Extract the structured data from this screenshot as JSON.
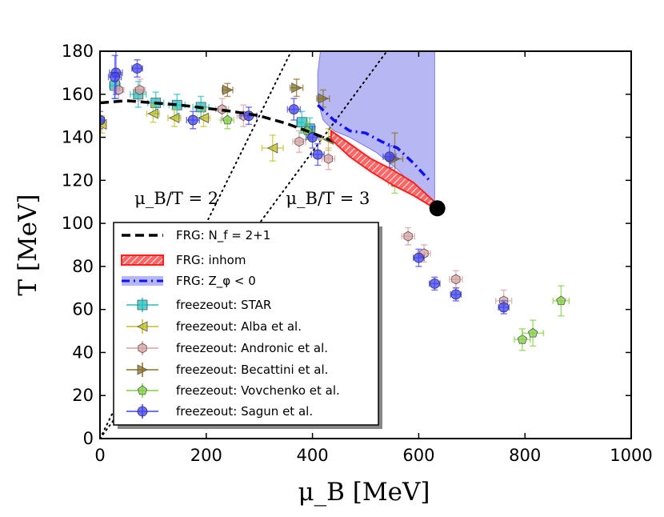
{
  "chart_data": {
    "type": "scatter",
    "xlabel": "μ_B [MeV]",
    "ylabel": "T [MeV]",
    "xlim": [
      0,
      1000
    ],
    "ylim": [
      0,
      180
    ],
    "xticks": [
      0,
      200,
      400,
      600,
      800,
      1000
    ],
    "yticks": [
      0,
      20,
      40,
      60,
      80,
      100,
      120,
      140,
      160,
      180
    ],
    "grid": false,
    "legend_position": "lower-left",
    "annotations": [
      {
        "text": "μ_B/T = 2",
        "x": 65,
        "y": 109
      },
      {
        "text": "μ_B/T = 3",
        "x": 350,
        "y": 109
      }
    ],
    "reference_lines": [
      {
        "name": "μ_B/T = 2",
        "slope": 0.5
      },
      {
        "name": "μ_B/T = 3",
        "slope": 0.3333
      }
    ],
    "critical_point": {
      "x": 635,
      "y": 107
    },
    "region": {
      "name": "FRG: Z_φ < 0",
      "color": "#7b7bea",
      "boundary": [
        [
          420,
          180
        ],
        [
          630,
          180
        ],
        [
          630,
          110
        ],
        [
          600,
          115
        ],
        [
          560,
          125
        ],
        [
          520,
          133
        ],
        [
          470,
          140
        ],
        [
          440,
          143
        ],
        [
          420,
          148
        ],
        [
          410,
          157
        ],
        [
          410,
          170
        ],
        [
          415,
          180
        ]
      ]
    },
    "series": [
      {
        "name": "FRG: N_f = 2+1",
        "style": "dashed",
        "color": "#000000",
        "x": [
          0,
          50,
          100,
          150,
          200,
          250,
          300,
          350,
          400,
          450,
          500,
          550,
          600,
          630
        ],
        "y": [
          156,
          157,
          156,
          155,
          153.5,
          152,
          150,
          146.5,
          142,
          137,
          130,
          124,
          113,
          107
        ]
      },
      {
        "name": "FRG: inhom",
        "style": "band",
        "color": "#ff2020",
        "x": [
          435,
          470,
          510,
          550,
          590,
          630
        ],
        "y_low": [
          139,
          131,
          124,
          118,
          113,
          107
        ],
        "y_high": [
          143,
          137,
          130,
          125,
          119,
          110
        ]
      },
      {
        "name": "FRG: Z_φ < 0",
        "style": "dashdot",
        "color": "#1010ff",
        "x": [
          410,
          440,
          470,
          500,
          530,
          560,
          590,
          620
        ],
        "y": [
          155,
          148,
          143,
          142,
          138,
          135,
          128,
          120
        ]
      },
      {
        "name": "freezeout: STAR",
        "marker": "square",
        "color": "#20c0c0",
        "x": [
          28,
          72,
          105,
          145,
          190,
          395,
          380
        ],
        "y": [
          164,
          160,
          156,
          155,
          154,
          144,
          147
        ],
        "xerr": [
          10,
          15,
          15,
          15,
          15,
          10,
          10
        ],
        "yerr": [
          6,
          6,
          5,
          5,
          5,
          5,
          5
        ]
      },
      {
        "name": "freezeout: Alba et al.",
        "marker": "triangle-left",
        "color": "#c0c020",
        "x": [
          3,
          100,
          140,
          195,
          325,
          430
        ],
        "y": [
          146,
          151,
          149,
          149,
          135,
          139
        ],
        "xerr": [
          8,
          12,
          12,
          12,
          20,
          15
        ],
        "yerr": [
          4,
          4,
          4,
          4,
          6,
          5
        ]
      },
      {
        "name": "freezeout: Andronic et al.",
        "marker": "hexagon",
        "color": "#d8a0a0",
        "x": [
          35,
          75,
          230,
          270,
          375,
          430,
          580,
          610,
          670,
          760
        ],
        "y": [
          162,
          162,
          153,
          150,
          138,
          130,
          94,
          86,
          74,
          64
        ],
        "xerr": [
          10,
          10,
          12,
          12,
          12,
          12,
          12,
          12,
          12,
          15
        ],
        "yerr": [
          5,
          5,
          5,
          5,
          5,
          5,
          4,
          4,
          4,
          5
        ]
      },
      {
        "name": "freezeout: Becattini et al.",
        "marker": "triangle-right",
        "color": "#8a7020",
        "x": [
          240,
          370,
          420,
          555
        ],
        "y": [
          162,
          163,
          158,
          130
        ],
        "xerr": [
          10,
          12,
          12,
          15
        ],
        "yerr": [
          3,
          4,
          4,
          12
        ]
      },
      {
        "name": "freezeout: Vovchenko et al.",
        "marker": "pentagon",
        "color": "#80d040",
        "x": [
          240,
          390,
          555,
          795,
          815,
          868
        ],
        "y": [
          148,
          143,
          119,
          46,
          49,
          64
        ],
        "xerr": [
          12,
          12,
          12,
          15,
          20,
          15
        ],
        "yerr": [
          4,
          4,
          5,
          5,
          6,
          7
        ]
      },
      {
        "name": "freezeout: Sagun et al.",
        "marker": "circle",
        "color": "#4040ff",
        "x": [
          0,
          30,
          28,
          70,
          175,
          280,
          365,
          400,
          410,
          545,
          600,
          630,
          670,
          760
        ],
        "y": [
          148,
          170,
          168,
          172,
          148,
          150,
          153,
          140,
          132,
          131,
          84,
          72,
          67,
          61
        ],
        "xerr": [
          8,
          12,
          12,
          10,
          12,
          15,
          12,
          12,
          12,
          12,
          10,
          10,
          10,
          10
        ],
        "yerr": [
          4,
          10,
          10,
          4,
          4,
          4,
          5,
          5,
          5,
          5,
          4,
          3,
          3,
          3
        ]
      }
    ],
    "legend_entries": [
      "FRG: N_f = 2+1",
      "FRG: inhom",
      "FRG: Z_φ < 0",
      "freezeout: STAR",
      "freezeout: Alba et al.",
      "freezeout: Andronic et al.",
      "freezeout: Becattini et al.",
      "freezeout: Vovchenko et al.",
      "freezeout: Sagun et al."
    ]
  }
}
